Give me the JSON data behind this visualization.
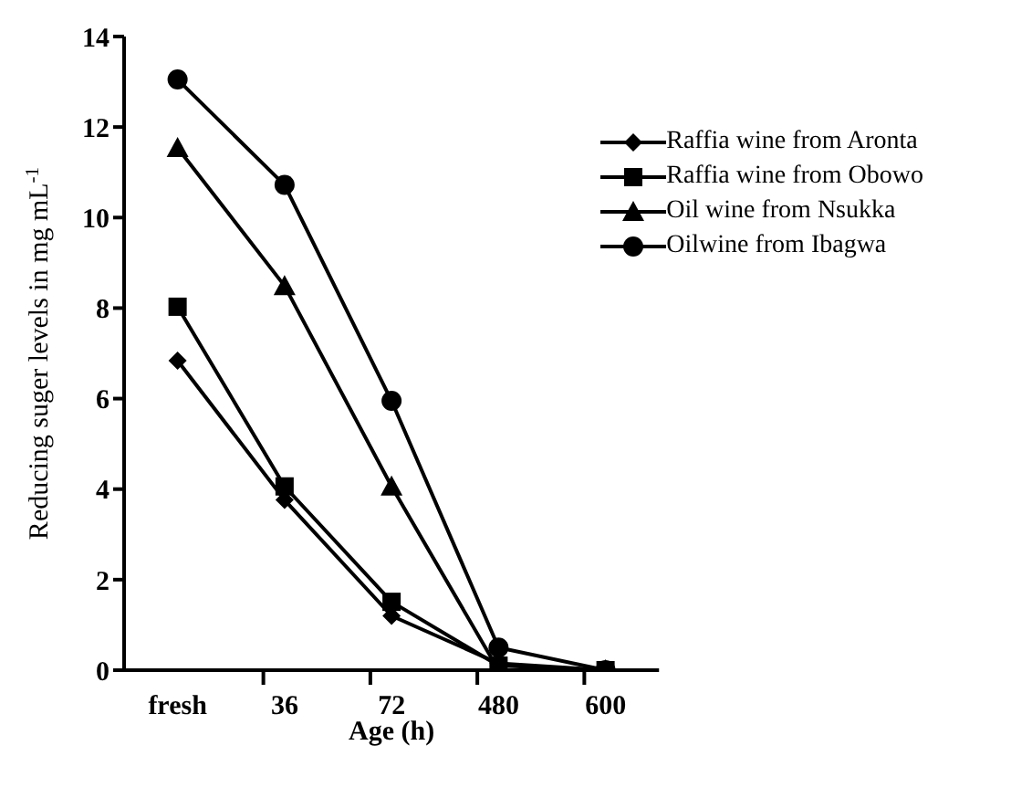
{
  "chart_data": {
    "type": "line",
    "xlabel": "Age (h)",
    "ylabel": "Reducing suger levels in mg mL$^{-1}$",
    "categories": [
      "fresh",
      "36",
      "72",
      "480",
      "600"
    ],
    "series": [
      {
        "name": "Raffia wine from Aronta",
        "color": "#000000",
        "marker": "diamond",
        "values": [
          6.84,
          3.76,
          1.2,
          0.15,
          0
        ]
      },
      {
        "name": "Raffia wine from Obowo",
        "color": "#000000",
        "marker": "square",
        "values": [
          8.03,
          4.06,
          1.51,
          0.1,
          0
        ]
      },
      {
        "name": "Oil wine from Nsukka",
        "color": "#000000",
        "marker": "triangle",
        "values": [
          11.54,
          8.49,
          4.06,
          0,
          0
        ]
      },
      {
        "name": "Oilwine from Ibagwa",
        "color": "#000000",
        "marker": "circle",
        "values": [
          13.05,
          10.72,
          5.95,
          0.5,
          0
        ]
      }
    ],
    "ylim": [
      0,
      14
    ],
    "yticks": [
      0,
      2,
      4,
      6,
      8,
      10,
      12,
      14
    ],
    "grid": false,
    "legend": "top right",
    "line_style": "solid"
  }
}
